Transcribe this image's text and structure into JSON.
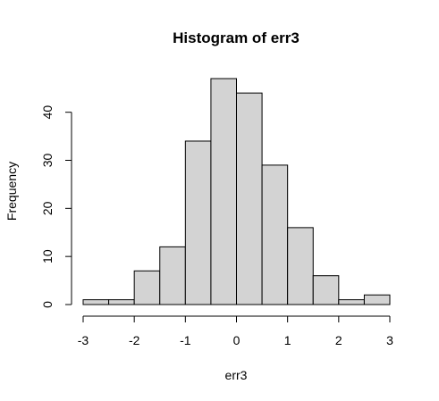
{
  "chart_data": {
    "type": "bar",
    "title": "Histogram of err3",
    "xlabel": "err3",
    "ylabel": "Frequency",
    "bin_edges": [
      -3,
      -2.5,
      -2,
      -1.5,
      -1,
      -0.5,
      0,
      0.5,
      1,
      1.5,
      2,
      2.5,
      3
    ],
    "values": [
      1,
      1,
      7,
      12,
      34,
      47,
      44,
      29,
      16,
      6,
      1,
      2
    ],
    "xlim": [
      -3,
      3
    ],
    "ylim": [
      0,
      47
    ],
    "x_ticks": [
      "-3",
      "-2",
      "-1",
      "0",
      "1",
      "2",
      "3"
    ],
    "y_ticks": [
      "0",
      "10",
      "20",
      "30",
      "40"
    ],
    "bar_fill": "#d3d3d3",
    "bar_stroke": "#000000",
    "grid": false
  }
}
